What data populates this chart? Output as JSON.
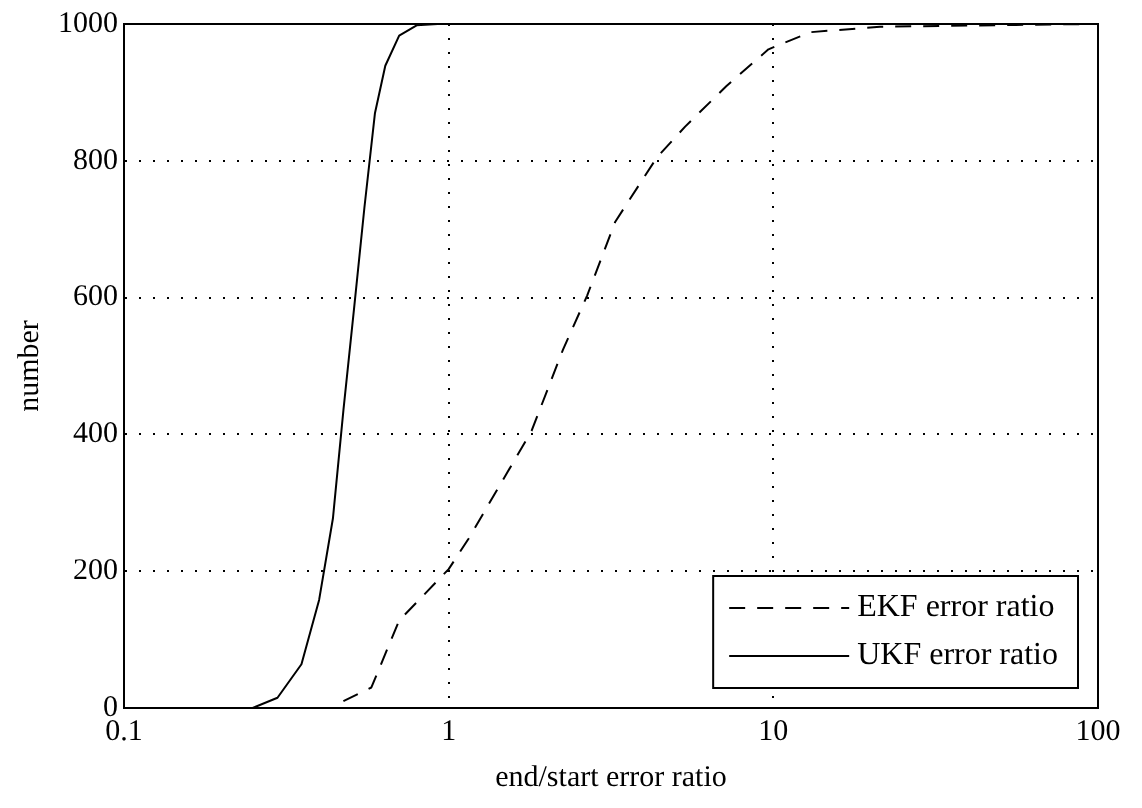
{
  "chart_data": {
    "type": "line",
    "xlabel": "end/start error ratio",
    "ylabel": "number",
    "log": "x",
    "xlim": [
      0.1,
      100
    ],
    "xticks": [
      0.1,
      1,
      10,
      100
    ],
    "ylim": [
      0,
      1000
    ],
    "yticks": [
      0,
      200,
      400,
      600,
      800,
      1000
    ],
    "grid": true,
    "legend": "bottom right",
    "marker": "none",
    "series": [
      {
        "name": "EKF error ratio",
        "color": "#000000",
        "line_style": "dashed",
        "x": [
          0.474,
          0.578,
          0.704,
          1.0,
          1.15,
          1.48,
          1.8,
          2.25,
          2.67,
          3.26,
          4.38,
          5.35,
          7.16,
          9.66,
          13.0,
          21.3,
          93.8
        ],
        "values": [
          10,
          30,
          128,
          203,
          247,
          336,
          405,
          524,
          603,
          711,
          805,
          850,
          909,
          963,
          988,
          996,
          1000
        ]
      },
      {
        "name": "UKF error ratio",
        "color": "#000000",
        "line_style": "solid",
        "x": [
          0.249,
          0.297,
          0.352,
          0.399,
          0.44,
          0.474,
          0.511,
          0.55,
          0.593,
          0.638,
          0.704,
          0.797,
          0.925
        ],
        "values": [
          0,
          15,
          64,
          158,
          277,
          435,
          583,
          731,
          870,
          939,
          983,
          998,
          1000
        ]
      }
    ]
  }
}
